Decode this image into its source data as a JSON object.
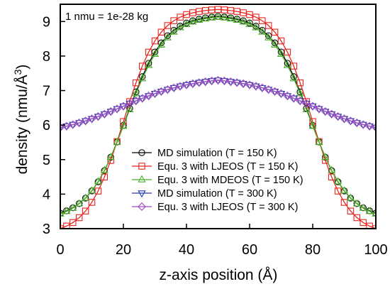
{
  "chart_data": {
    "type": "line",
    "title": "",
    "annotation": "1 nmu = 1e-28 kg",
    "xlabel": "z-axis position (Å)",
    "ylabel_main": "density (nmu/Å",
    "ylabel_sup": "3",
    "ylabel_close": ")",
    "xlim": [
      0,
      100
    ],
    "ylim": [
      3,
      9.5
    ],
    "xticks": [
      0,
      20,
      40,
      60,
      80,
      100
    ],
    "yticks": [
      3,
      4,
      5,
      6,
      7,
      8,
      9
    ],
    "grid": false,
    "legend_position": "lower-center",
    "n_points": 51,
    "x_start": 0,
    "x_step": 2,
    "series": [
      {
        "name": "MD simulation (T = 150 K)",
        "color": "#000000",
        "marker": "circle",
        "profile": {
          "min": 3.45,
          "max": 9.15,
          "center": 50,
          "half_width": 29,
          "edge_width": 6.0
        }
      },
      {
        "name": "Equ. 3 with LJEOS (T = 150 K)",
        "color": "#e8231d",
        "marker": "square",
        "profile": {
          "min": 3.0,
          "max": 9.35,
          "center": 50,
          "half_width": 30,
          "edge_width": 5.6
        }
      },
      {
        "name": "Equ. 3 with MDEOS (T = 150 K)",
        "color": "#4caf2a",
        "marker": "triangle-up",
        "profile": {
          "min": 3.43,
          "max": 9.13,
          "center": 50,
          "half_width": 29,
          "edge_width": 6.2
        }
      },
      {
        "name": "MD simulation (T = 300 K)",
        "color": "#1f3fa6",
        "marker": "triangle-down",
        "profile": {
          "min": 5.93,
          "max": 7.3,
          "center": 50,
          "half_width": 30,
          "edge_width": 11
        }
      },
      {
        "name": "Equ. 3 with LJEOS (T = 300 K)",
        "color": "#a44ac4",
        "marker": "diamond",
        "profile": {
          "min": 5.93,
          "max": 7.3,
          "center": 50,
          "half_width": 30,
          "edge_width": 11
        }
      }
    ]
  }
}
